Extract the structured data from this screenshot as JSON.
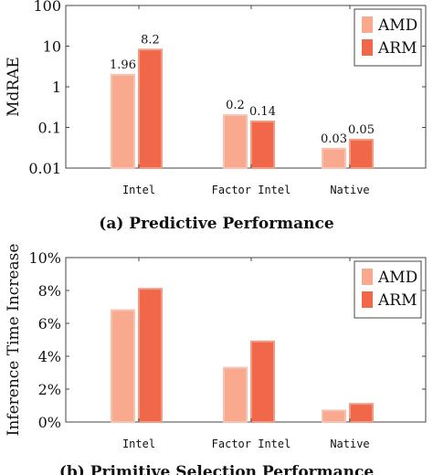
{
  "colors": {
    "amd": "#f9a98e",
    "arm": "#f0674a",
    "axis": "#444444",
    "text": "#111111"
  },
  "chart_data": [
    {
      "type": "bar",
      "title": "",
      "caption": "(a) Predictive Performance",
      "ylabel": "MdRAE",
      "ylog": true,
      "ylim": [
        0.01,
        100
      ],
      "yticks": [
        "0.01",
        "0.1",
        "1",
        "10",
        "100"
      ],
      "categories": [
        "Intel",
        "Factor Intel",
        "Native"
      ],
      "series": [
        {
          "name": "AMD",
          "values": [
            1.96,
            0.2,
            0.03
          ],
          "labels": [
            "1.96",
            "0.2",
            "0.03"
          ]
        },
        {
          "name": "ARM",
          "values": [
            8.2,
            0.14,
            0.05
          ],
          "labels": [
            "8.2",
            "0.14",
            "0.05"
          ]
        }
      ],
      "legend": "top-right",
      "grid": false
    },
    {
      "type": "bar",
      "title": "",
      "caption": "(b) Primitive Selection Performance",
      "ylabel": "Inference Time Increase",
      "ylog": false,
      "ylim": [
        0,
        10
      ],
      "yticks": [
        "0%",
        "2%",
        "4%",
        "6%",
        "8%",
        "10%"
      ],
      "categories": [
        "Intel",
        "Factor Intel",
        "Native"
      ],
      "series": [
        {
          "name": "AMD",
          "values": [
            6.8,
            3.3,
            0.7
          ]
        },
        {
          "name": "ARM",
          "values": [
            8.1,
            4.9,
            1.1
          ]
        }
      ],
      "legend": "top-right",
      "grid": false
    }
  ]
}
